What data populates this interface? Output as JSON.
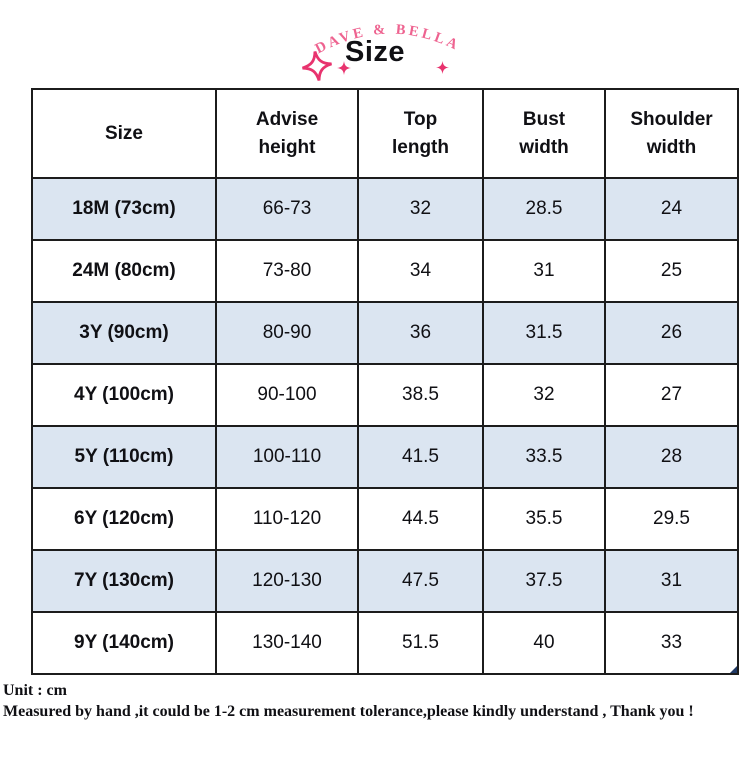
{
  "brand": {
    "name": "DAVE & BELLA"
  },
  "title": "Size",
  "table": {
    "columns": [
      "Size",
      "Advise height",
      "Top length",
      "Bust width",
      "Shoulder width"
    ],
    "rows": [
      [
        "18M (73cm)",
        "66-73",
        "32",
        "28.5",
        "24"
      ],
      [
        "24M (80cm)",
        "73-80",
        "34",
        "31",
        "25"
      ],
      [
        "3Y (90cm)",
        "80-90",
        "36",
        "31.5",
        "26"
      ],
      [
        "4Y (100cm)",
        "90-100",
        "38.5",
        "32",
        "27"
      ],
      [
        "5Y (110cm)",
        "100-110",
        "41.5",
        "33.5",
        "28"
      ],
      [
        "6Y (120cm)",
        "110-120",
        "44.5",
        "35.5",
        "29.5"
      ],
      [
        "7Y (130cm)",
        "120-130",
        "47.5",
        "37.5",
        "31"
      ],
      [
        "9Y (140cm)",
        "130-140",
        "51.5",
        "40",
        "33"
      ]
    ],
    "unit": "cm"
  },
  "footer": {
    "unit_line": "Unit : cm",
    "note_line": "Measured by hand ,it could be 1-2 cm measurement tolerance,please kindly understand , Thank you !"
  },
  "colors": {
    "row_alt": "#dbe5f1",
    "brand_pink": "#ee6390",
    "sparkle_pink": "#e8336e",
    "border": "#1c1c1c"
  }
}
